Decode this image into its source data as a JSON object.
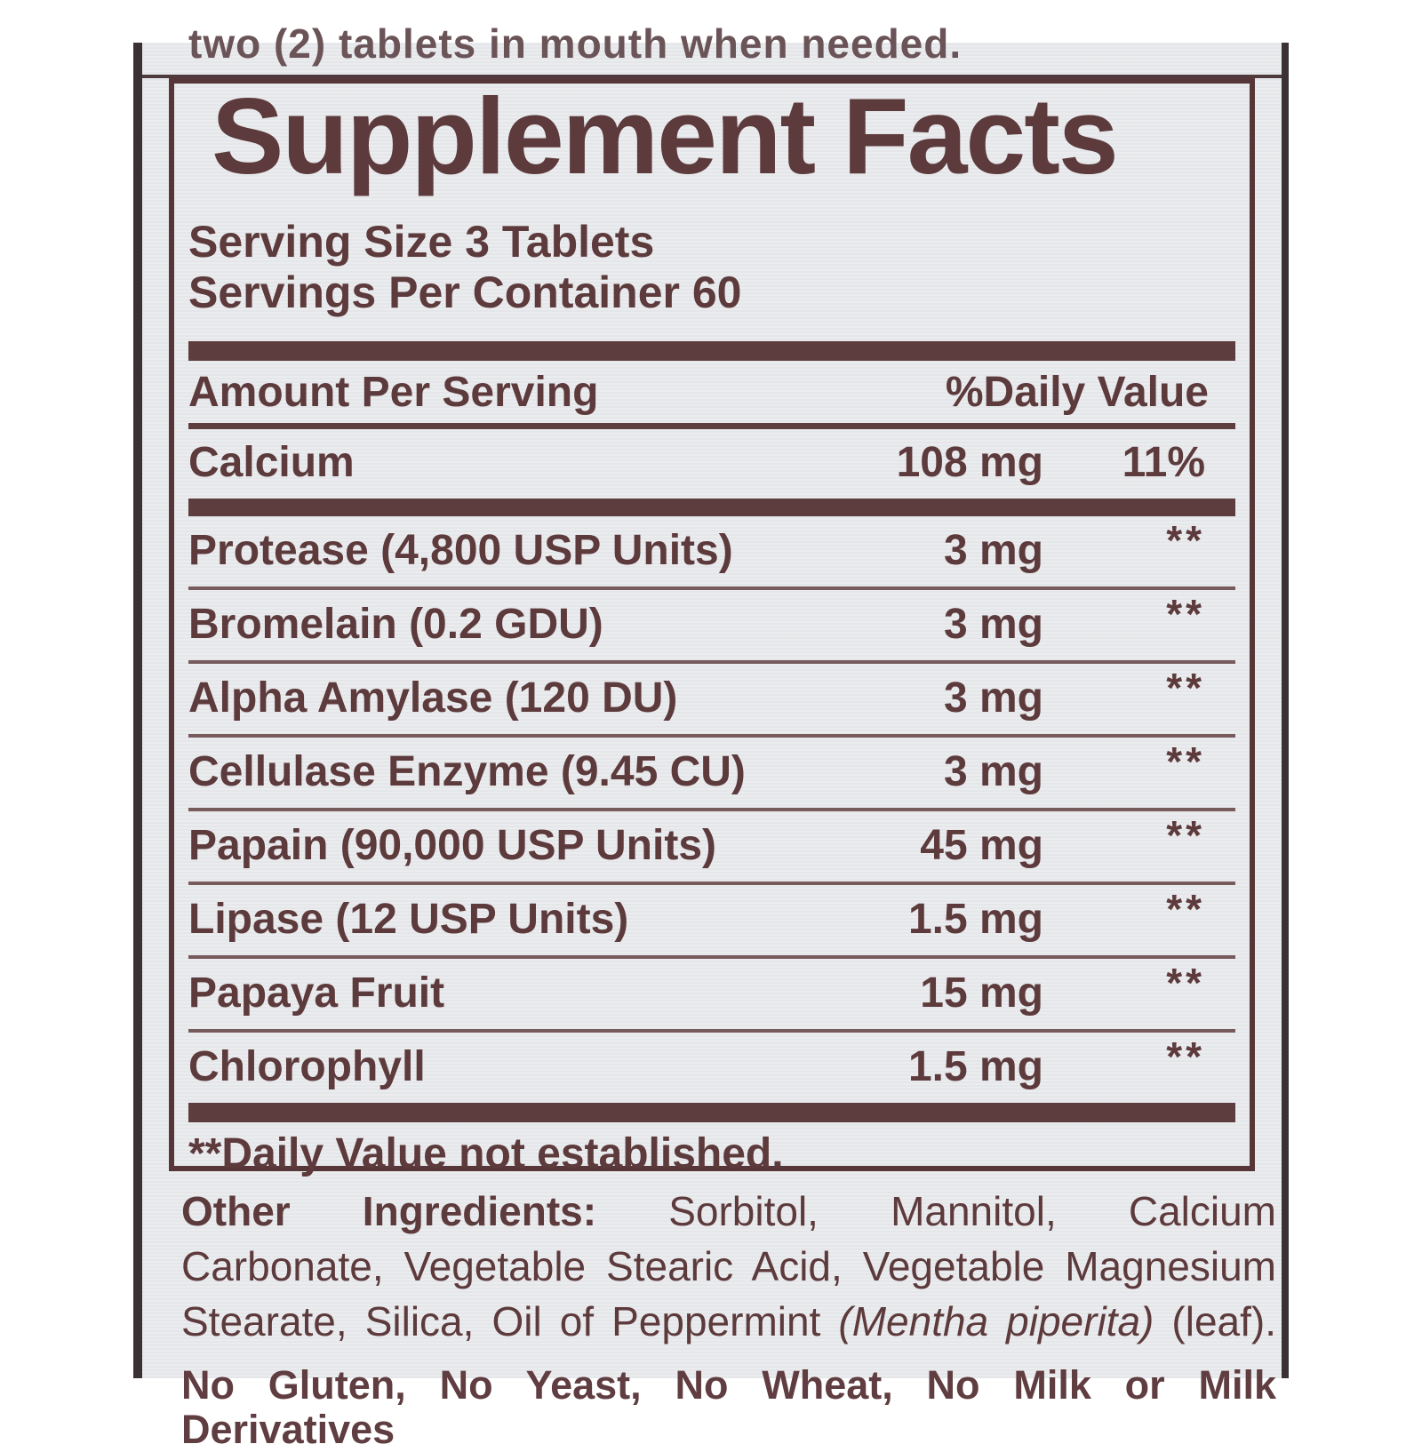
{
  "label": {
    "top_cropped_text": "two (2) tablets in mouth when needed.",
    "bottom_cropped_text": "No Gluten, No Yeast, No Wheat, No Milk or Milk Derivatives",
    "panel": {
      "title": "Supplement Facts",
      "serving_size": "Serving Size 3 Tablets",
      "servings_per_container": "Servings Per Container 60",
      "header": {
        "amount": "Amount Per Serving",
        "daily_value": "%Daily Value"
      },
      "rows": [
        {
          "name": "Calcium",
          "amount": "108 mg",
          "dv": "11%"
        },
        {
          "name": "Protease (4,800 USP Units)",
          "amount": "3 mg",
          "dv": "**"
        },
        {
          "name": "Bromelain (0.2 GDU)",
          "amount": "3 mg",
          "dv": "**"
        },
        {
          "name": "Alpha Amylase (120 DU)",
          "amount": "3 mg",
          "dv": "**"
        },
        {
          "name": "Cellulase Enzyme (9.45 CU)",
          "amount": "3 mg",
          "dv": "**"
        },
        {
          "name": "Papain (90,000 USP Units)",
          "amount": "45 mg",
          "dv": "**"
        },
        {
          "name": "Lipase (12 USP Units)",
          "amount": "1.5 mg",
          "dv": "**"
        },
        {
          "name": "Papaya Fruit",
          "amount": "15 mg",
          "dv": "**"
        },
        {
          "name": "Chlorophyll",
          "amount": "1.5 mg",
          "dv": "**"
        }
      ],
      "footnote": "**Daily Value not established."
    },
    "other_ingredients": {
      "line1_bold": "Other Ingredients:",
      "line1_rest": " Sorbitol, Mannitol, Calcium",
      "line2": "Carbonate, Vegetable Stearic Acid, Vegetable Magnesium",
      "line3_start": "Stearate, Silica, Oil of Peppermint ",
      "line3_italic": "(Mentha piperita)",
      "line3_end": " (leaf)."
    },
    "colors": {
      "ink": "#5d3a3c",
      "bar": "#5e3d3e",
      "photo_background": "#e9ebee",
      "edge_line": "#3b3134"
    }
  }
}
